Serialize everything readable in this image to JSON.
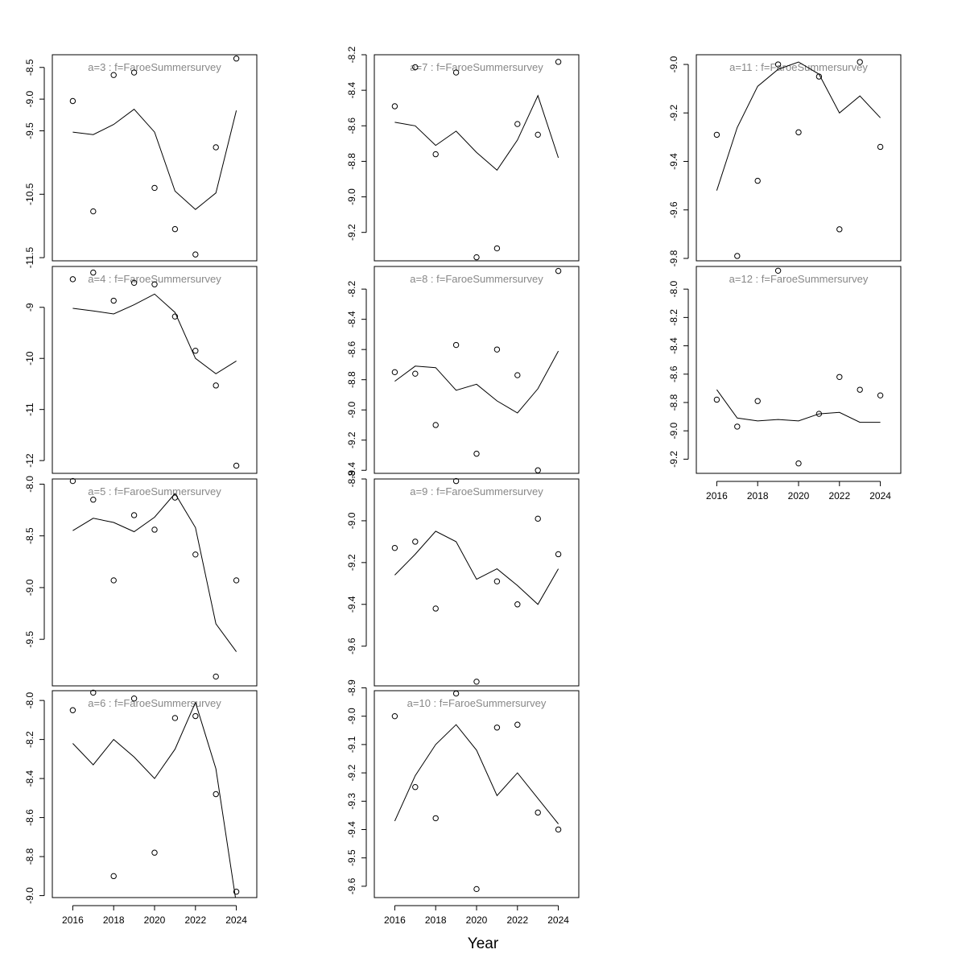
{
  "figure": {
    "xlabel": "Year",
    "colors": {
      "frame": "#000000",
      "line": "#000000",
      "point": "#000000",
      "title": "#888888",
      "background": "#ffffff"
    }
  },
  "chart_data": [
    {
      "type": "scatter",
      "title": "a=3  :  f=FaroeSummersurvey",
      "x": [
        2016,
        2017,
        2018,
        2019,
        2020,
        2021,
        2022,
        2023,
        2024
      ],
      "series": [
        {
          "values": [
            -9.03,
            -10.77,
            -8.62,
            -8.58,
            -10.4,
            -11.05,
            -11.45,
            -9.76,
            -8.36
          ]
        },
        {
          "values": [
            -9.52,
            -9.56,
            -9.4,
            -9.16,
            -9.52,
            -10.45,
            -10.74,
            -10.48,
            -9.18
          ]
        }
      ],
      "ylim": [
        -11.55,
        -8.3
      ],
      "yticks": [
        -8.5,
        -9.0,
        -9.5,
        -10.5,
        -11.5
      ],
      "ytick_labels": [
        "-8.5",
        "-9.0",
        "-9.5",
        "-10.5",
        "-11.5"
      ],
      "xticks": [],
      "xlim": [
        2015.0,
        2025.0
      ]
    },
    {
      "type": "scatter",
      "title": "a=4  :  f=FaroeSummersurvey",
      "x": [
        2016,
        2017,
        2018,
        2019,
        2020,
        2021,
        2022,
        2023,
        2024
      ],
      "series": [
        {
          "values": [
            -8.45,
            -8.32,
            -8.87,
            -8.52,
            -8.55,
            -9.18,
            -9.85,
            -10.53,
            -12.1
          ]
        },
        {
          "values": [
            -9.02,
            -9.07,
            -9.13,
            -8.95,
            -8.74,
            -9.1,
            -10.0,
            -10.3,
            -10.05
          ]
        }
      ],
      "ylim": [
        -12.25,
        -8.2
      ],
      "yticks": [
        -9,
        -10,
        -11,
        -12
      ],
      "ytick_labels": [
        "-9",
        "-10",
        "-11",
        "-12"
      ],
      "xticks": [],
      "xlim": [
        2015.0,
        2025.0
      ]
    },
    {
      "type": "scatter",
      "title": "a=5  :  f=FaroeSummersurvey",
      "x": [
        2016,
        2017,
        2018,
        2019,
        2020,
        2021,
        2022,
        2023,
        2024
      ],
      "series": [
        {
          "values": [
            -7.97,
            -8.15,
            -8.93,
            -8.3,
            -8.44,
            -8.13,
            -8.68,
            -9.86,
            -8.93
          ]
        },
        {
          "values": [
            -8.45,
            -8.33,
            -8.37,
            -8.46,
            -8.32,
            -8.09,
            -8.42,
            -9.35,
            -9.62
          ]
        }
      ],
      "ylim": [
        -9.95,
        -7.95
      ],
      "yticks": [
        -8.0,
        -8.5,
        -9.0,
        -9.5
      ],
      "ytick_labels": [
        "-8.0",
        "-8.5",
        "-9.0",
        "-9.5"
      ],
      "xticks": [],
      "xlim": [
        2015.0,
        2025.0
      ]
    },
    {
      "type": "scatter",
      "title": "a=6  :  f=FaroeSummersurvey",
      "x": [
        2016,
        2017,
        2018,
        2019,
        2020,
        2021,
        2022,
        2023,
        2024
      ],
      "series": [
        {
          "values": [
            -8.05,
            -7.96,
            -8.9,
            -7.99,
            -8.78,
            -8.09,
            -8.08,
            -8.48,
            -8.98
          ]
        },
        {
          "values": [
            -8.22,
            -8.33,
            -8.2,
            -8.29,
            -8.4,
            -8.25,
            -8.01,
            -8.35,
            -9.04
          ]
        }
      ],
      "ylim": [
        -9.01,
        -7.95
      ],
      "yticks": [
        -8.0,
        -8.2,
        -8.4,
        -8.6,
        -8.8,
        -9.0
      ],
      "ytick_labels": [
        "-8.0",
        "-8.2",
        "-8.4",
        "-8.6",
        "-8.8",
        "-9.0"
      ],
      "xticks": [
        2016,
        2018,
        2020,
        2022,
        2024
      ],
      "xtick_labels": [
        "2016",
        "2018",
        "2020",
        "2022",
        "2024"
      ],
      "xlim": [
        2015.0,
        2025.0
      ]
    },
    {
      "type": "scatter",
      "title": "a=7  :  f=FaroeSummersurvey",
      "x": [
        2016,
        2017,
        2018,
        2019,
        2020,
        2021,
        2022,
        2023,
        2024
      ],
      "series": [
        {
          "values": [
            -8.49,
            -8.27,
            -8.76,
            -8.3,
            -9.34,
            -9.29,
            -8.59,
            -8.65,
            -8.24
          ]
        },
        {
          "values": [
            -8.58,
            -8.6,
            -8.71,
            -8.63,
            -8.75,
            -8.85,
            -8.68,
            -8.43,
            -8.78
          ]
        }
      ],
      "ylim": [
        -9.36,
        -8.2
      ],
      "yticks": [
        -8.2,
        -8.4,
        -8.6,
        -8.8,
        -9.0,
        -9.2
      ],
      "ytick_labels": [
        "-8.2",
        "-8.4",
        "-8.6",
        "-8.8",
        "-9.0",
        "-9.2"
      ],
      "xticks": [],
      "xlim": [
        2015.0,
        2025.0
      ]
    },
    {
      "type": "scatter",
      "title": "a=8  :  f=FaroeSummersurvey",
      "x": [
        2016,
        2017,
        2018,
        2019,
        2020,
        2021,
        2022,
        2023,
        2024
      ],
      "series": [
        {
          "values": [
            -8.75,
            -8.76,
            -9.1,
            -8.57,
            -9.29,
            -8.6,
            -8.77,
            -9.4,
            -8.08
          ]
        },
        {
          "values": [
            -8.81,
            -8.71,
            -8.72,
            -8.87,
            -8.83,
            -8.94,
            -9.02,
            -8.86,
            -8.61
          ]
        }
      ],
      "ylim": [
        -9.42,
        -8.05
      ],
      "yticks": [
        -8.2,
        -8.4,
        -8.6,
        -8.8,
        -9.0,
        -9.2,
        -9.4
      ],
      "ytick_labels": [
        "-8.2",
        "-8.4",
        "-8.6",
        "-8.8",
        "-9.0",
        "-9.2",
        "-9.4"
      ],
      "xticks": [],
      "xlim": [
        2015.0,
        2025.0
      ]
    },
    {
      "type": "scatter",
      "title": "a=9  :  f=FaroeSummersurvey",
      "x": [
        2016,
        2017,
        2018,
        2019,
        2020,
        2021,
        2022,
        2023,
        2024
      ],
      "series": [
        {
          "values": [
            -9.13,
            -9.1,
            -9.42,
            -8.81,
            -9.77,
            -9.29,
            -9.4,
            -8.99,
            -9.16
          ]
        },
        {
          "values": [
            -9.26,
            -9.16,
            -9.05,
            -9.1,
            -9.28,
            -9.23,
            -9.31,
            -9.4,
            -9.23
          ]
        }
      ],
      "ylim": [
        -9.79,
        -8.8
      ],
      "yticks": [
        -8.8,
        -9.0,
        -9.2,
        -9.4,
        -9.6
      ],
      "ytick_labels": [
        "-8.8",
        "-9.0",
        "-9.2",
        "-9.4",
        "-9.6"
      ],
      "xticks": [],
      "xlim": [
        2015.0,
        2025.0
      ]
    },
    {
      "type": "scatter",
      "title": "a=10  :  f=FaroeSummersurvey",
      "x": [
        2016,
        2017,
        2018,
        2019,
        2020,
        2021,
        2022,
        2023,
        2024
      ],
      "series": [
        {
          "values": [
            -9.0,
            -9.25,
            -9.36,
            -8.92,
            -9.61,
            -9.04,
            -9.03,
            -9.34,
            -9.4
          ]
        },
        {
          "values": [
            -9.37,
            -9.21,
            -9.1,
            -9.03,
            -9.12,
            -9.28,
            -9.2,
            -9.29,
            -9.38
          ]
        }
      ],
      "ylim": [
        -9.64,
        -8.91
      ],
      "yticks": [
        -8.9,
        -9.0,
        -9.1,
        -9.2,
        -9.3,
        -9.4,
        -9.5,
        -9.6
      ],
      "ytick_labels": [
        "-8.9",
        "-9.0",
        "-9.1",
        "-9.2",
        "-9.3",
        "-9.4",
        "-9.5",
        "-9.6"
      ],
      "xticks": [
        2016,
        2018,
        2020,
        2022,
        2024
      ],
      "xtick_labels": [
        "2016",
        "2018",
        "2020",
        "2022",
        "2024"
      ],
      "xlim": [
        2015.0,
        2025.0
      ]
    },
    {
      "type": "scatter",
      "title": "a=11  :  f=FaroeSummersurvey",
      "x": [
        2016,
        2017,
        2018,
        2019,
        2020,
        2021,
        2022,
        2023,
        2024
      ],
      "series": [
        {
          "values": [
            -9.29,
            -9.79,
            -9.48,
            -9.0,
            -9.28,
            -9.05,
            -9.68,
            -8.99,
            -9.34
          ]
        },
        {
          "values": [
            -9.52,
            -9.26,
            -9.09,
            -9.02,
            -8.99,
            -9.04,
            -9.2,
            -9.13,
            -9.22
          ]
        }
      ],
      "ylim": [
        -9.81,
        -8.96
      ],
      "yticks": [
        -9.0,
        -9.2,
        -9.4,
        -9.6,
        -9.8
      ],
      "ytick_labels": [
        "-9.0",
        "-9.2",
        "-9.4",
        "-9.6",
        "-9.8"
      ],
      "xticks": [],
      "xlim": [
        2015.0,
        2025.0
      ]
    },
    {
      "type": "scatter",
      "title": "a=12  :  f=FaroeSummersurvey",
      "x": [
        2016,
        2017,
        2018,
        2019,
        2020,
        2021,
        2022,
        2023,
        2024
      ],
      "series": [
        {
          "values": [
            -8.78,
            -8.97,
            -8.79,
            -7.87,
            -9.23,
            -8.88,
            -8.62,
            -8.71,
            -8.75
          ]
        },
        {
          "values": [
            -8.71,
            -8.91,
            -8.93,
            -8.92,
            -8.93,
            -8.88,
            -8.87,
            -8.94,
            -8.94
          ]
        }
      ],
      "ylim": [
        -9.3,
        -7.84
      ],
      "yticks": [
        -8.0,
        -8.2,
        -8.4,
        -8.6,
        -8.8,
        -9.0,
        -9.2
      ],
      "ytick_labels": [
        "-8.0",
        "-8.2",
        "-8.4",
        "-8.6",
        "-8.8",
        "-9.0",
        "-9.2"
      ],
      "xticks": [
        2016,
        2018,
        2020,
        2022,
        2024
      ],
      "xtick_labels": [
        "2016",
        "2018",
        "2020",
        "2022",
        "2024"
      ],
      "xlim": [
        2015.0,
        2025.0
      ]
    }
  ]
}
